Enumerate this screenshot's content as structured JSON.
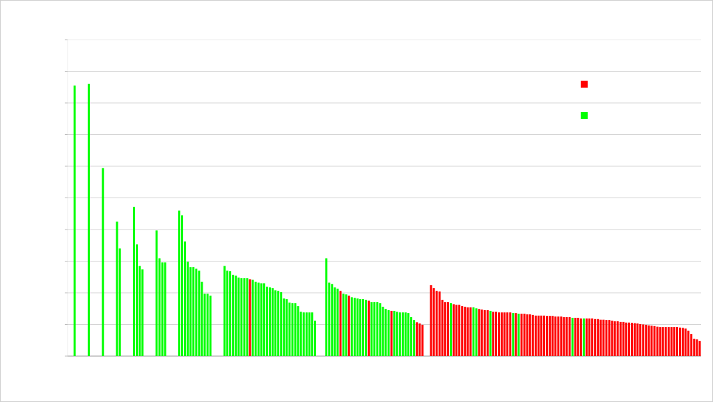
{
  "chart_data": {
    "type": "bar",
    "values": [
      null,
      null,
      8.55,
      null,
      null,
      null,
      null,
      8.6,
      null,
      null,
      null,
      null,
      5.94,
      null,
      null,
      null,
      null,
      4.25,
      3.4,
      null,
      null,
      null,
      null,
      4.71,
      3.53,
      2.85,
      2.74,
      null,
      null,
      null,
      null,
      3.97,
      3.09,
      2.96,
      2.96,
      null,
      null,
      null,
      null,
      4.6,
      4.45,
      3.62,
      2.98,
      2.81,
      2.81,
      2.76,
      2.7,
      2.35,
      1.97,
      1.97,
      1.91,
      null,
      null,
      null,
      null,
      2.85,
      2.7,
      2.68,
      2.57,
      2.54,
      2.48,
      2.46,
      2.46,
      2.46,
      2.43,
      2.41,
      2.35,
      2.32,
      2.3,
      2.3,
      2.19,
      2.17,
      2.15,
      2.08,
      2.06,
      2.02,
      1.82,
      1.8,
      1.69,
      1.67,
      1.67,
      1.58,
      1.4,
      1.38,
      1.38,
      1.38,
      1.38,
      1.12,
      null,
      null,
      null,
      3.09,
      2.32,
      2.28,
      2.17,
      2.13,
      2.06,
      1.97,
      1.95,
      1.91,
      1.86,
      1.84,
      1.82,
      1.8,
      1.8,
      1.78,
      1.75,
      1.71,
      1.71,
      1.71,
      1.67,
      1.56,
      1.49,
      1.45,
      1.43,
      1.43,
      1.4,
      1.38,
      1.38,
      1.38,
      1.36,
      1.23,
      1.14,
      1.07,
      1.03,
      0.99,
      null,
      null,
      2.24,
      2.15,
      2.06,
      2.04,
      1.78,
      1.71,
      1.71,
      1.67,
      1.64,
      1.62,
      1.62,
      1.58,
      1.56,
      1.54,
      1.54,
      1.54,
      1.51,
      1.49,
      1.47,
      1.45,
      1.45,
      1.43,
      1.4,
      1.4,
      1.38,
      1.38,
      1.38,
      1.38,
      1.38,
      1.36,
      1.36,
      1.34,
      1.34,
      1.34,
      1.32,
      1.32,
      1.3,
      1.28,
      1.28,
      1.28,
      1.28,
      1.27,
      1.27,
      1.27,
      1.25,
      1.25,
      1.25,
      1.23,
      1.23,
      1.23,
      1.21,
      1.21,
      1.21,
      1.19,
      1.19,
      1.19,
      1.19,
      1.19,
      1.17,
      1.17,
      1.15,
      1.15,
      1.14,
      1.14,
      1.12,
      1.1,
      1.1,
      1.08,
      1.08,
      1.06,
      1.06,
      1.05,
      1.04,
      1.03,
      1.01,
      1.0,
      0.99,
      0.97,
      0.96,
      0.95,
      0.93,
      0.92,
      0.92,
      0.92,
      0.92,
      0.92,
      0.92,
      0.92,
      0.9,
      0.89,
      0.87,
      0.8,
      0.7,
      0.55,
      0.53,
      0.48
    ],
    "colors": [
      null,
      null,
      "#00ff00",
      null,
      null,
      null,
      null,
      "#00ff00",
      null,
      null,
      null,
      null,
      "#00ff00",
      null,
      null,
      null,
      null,
      "#00ff00",
      "#00ff00",
      null,
      null,
      null,
      null,
      "#00ff00",
      "#00ff00",
      "#00ff00",
      "#00ff00",
      null,
      null,
      null,
      null,
      "#00ff00",
      "#00ff00",
      "#00ff00",
      "#00ff00",
      null,
      null,
      null,
      null,
      "#00ff00",
      "#00ff00",
      "#00ff00",
      "#00ff00",
      "#00ff00",
      "#00ff00",
      "#00ff00",
      "#00ff00",
      "#00ff00",
      "#00ff00",
      "#00ff00",
      "#00ff00",
      null,
      null,
      null,
      null,
      "#00ff00",
      "#00ff00",
      "#00ff00",
      "#00ff00",
      "#00ff00",
      "#00ff00",
      "#00ff00",
      "#00ff00",
      "#00ff00",
      "#ff0000",
      "#00ff00",
      "#00ff00",
      "#00ff00",
      "#00ff00",
      "#00ff00",
      "#00ff00",
      "#00ff00",
      "#00ff00",
      "#00ff00",
      "#00ff00",
      "#00ff00",
      "#00ff00",
      "#00ff00",
      "#00ff00",
      "#00ff00",
      "#00ff00",
      "#00ff00",
      "#00ff00",
      "#00ff00",
      "#00ff00",
      "#00ff00",
      "#00ff00",
      "#00ff00",
      null,
      null,
      null,
      "#00ff00",
      "#00ff00",
      "#00ff00",
      "#00ff00",
      "#00ff00",
      "#ff0000",
      "#00ff00",
      "#00ff00",
      "#ff0000",
      "#00ff00",
      "#00ff00",
      "#00ff00",
      "#00ff00",
      "#00ff00",
      "#00ff00",
      "#ff0000",
      "#00ff00",
      "#00ff00",
      "#00ff00",
      "#00ff00",
      "#00ff00",
      "#00ff00",
      "#00ff00",
      "#ff0000",
      "#00ff00",
      "#00ff00",
      "#00ff00",
      "#00ff00",
      "#00ff00",
      "#00ff00",
      "#00ff00",
      "#00ff00",
      "#ff0000",
      "#ff0000",
      "#ff0000",
      null,
      null,
      "#ff0000",
      "#ff0000",
      "#ff0000",
      "#ff0000",
      "#ff0000",
      "#ff0000",
      "#ff0000",
      "#00ff00",
      "#ff0000",
      "#ff0000",
      "#ff0000",
      "#ff0000",
      "#ff0000",
      "#ff0000",
      "#ff0000",
      "#00ff00",
      "#00ff00",
      "#ff0000",
      "#ff0000",
      "#ff0000",
      "#ff0000",
      "#00ff00",
      "#ff0000",
      "#ff0000",
      "#ff0000",
      "#ff0000",
      "#ff0000",
      "#ff0000",
      "#ff0000",
      "#00ff00",
      "#ff0000",
      "#00ff00",
      "#ff0000",
      "#ff0000",
      "#ff0000",
      "#ff0000",
      "#ff0000",
      "#ff0000",
      "#ff0000",
      "#ff0000",
      "#ff0000",
      "#ff0000",
      "#ff0000",
      "#ff0000",
      "#ff0000",
      "#ff0000",
      "#ff0000",
      "#ff0000",
      "#ff0000",
      "#ff0000",
      "#00ff00",
      "#ff0000",
      "#ff0000",
      "#ff0000",
      "#00ff00",
      "#ff0000",
      "#ff0000",
      "#ff0000",
      "#ff0000",
      "#ff0000",
      "#ff0000",
      "#ff0000",
      "#ff0000",
      "#ff0000",
      "#ff0000",
      "#ff0000",
      "#ff0000",
      "#ff0000",
      "#ff0000",
      "#ff0000",
      "#ff0000",
      "#ff0000",
      "#ff0000",
      "#ff0000",
      "#ff0000",
      "#ff0000",
      "#ff0000",
      "#ff0000",
      "#ff0000",
      "#ff0000",
      "#ff0000",
      "#ff0000",
      "#ff0000",
      "#ff0000",
      "#ff0000",
      "#ff0000",
      "#ff0000",
      "#ff0000",
      "#ff0000",
      "#ff0000",
      "#ff0000",
      "#ff0000",
      "#ff0000",
      "#ff0000",
      "#ff0000",
      "#ff0000"
    ],
    "ylim": [
      0,
      10
    ],
    "yticks": [
      0,
      1,
      2,
      3,
      4,
      5,
      6,
      7,
      8,
      9,
      10
    ],
    "grid": true,
    "legend": {
      "colors": [
        "#ff0000",
        "#00ff00"
      ],
      "position": "upper right"
    }
  }
}
